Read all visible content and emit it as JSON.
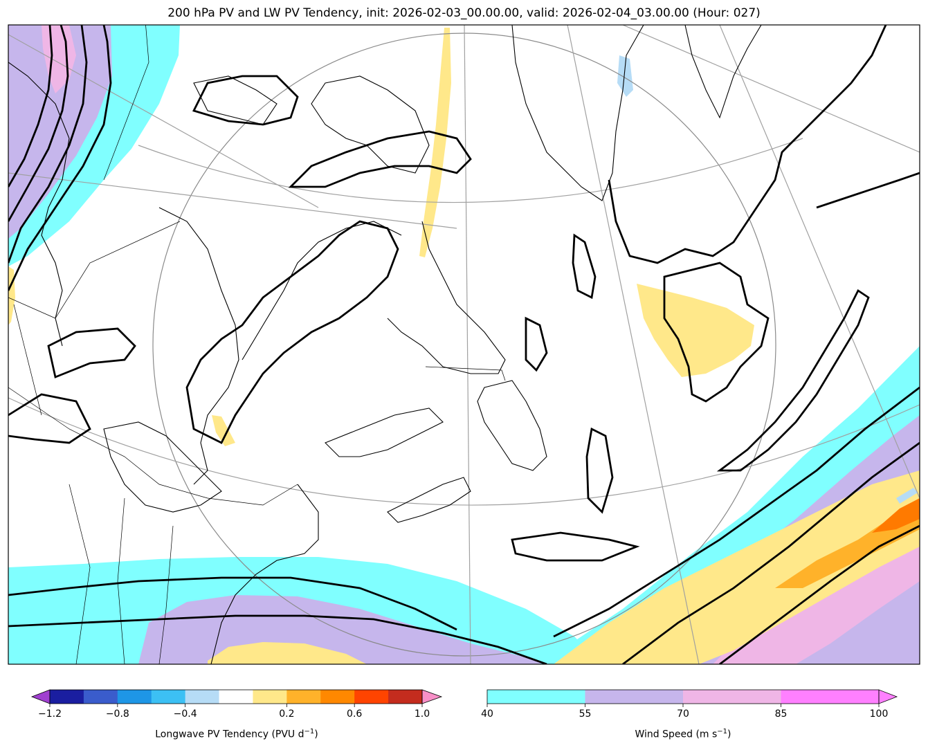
{
  "title": "200 hPa PV and LW PV Tendency, init: 2026-02-03_00.00.00, valid: 2026-02-04_03.00.00 (Hour: 027)",
  "colors": {
    "land_outline": "#000000",
    "grid": "#a0a0a0",
    "pv_contour": "#000000",
    "wind_40_55": "#80ffff",
    "wind_55_70": "#c6b6ec",
    "wind_70_85": "#efb6e6",
    "wind_85_100": "#ff80ff",
    "tend_pos_low": "#ffe88a",
    "tend_pos_mid": "#ffb22a",
    "tend_pos_high": "#ff7a00",
    "tend_neg_low": "#b6dcf6"
  },
  "colorbars": {
    "pv_tendency": {
      "label": "Longwave PV Tendency (PVU d",
      "label_sup": "−1",
      "label_end": ")",
      "ticks": [
        "−1.2",
        "−0.8",
        "−0.4",
        "0.2",
        "0.6",
        "1.0"
      ],
      "colors": [
        "#1a1ea0",
        "#3a5ccc",
        "#1e96e6",
        "#3cc0f4",
        "#b6dcf6",
        "#ffffff",
        "#ffe88a",
        "#ffb22a",
        "#ff8800",
        "#ff4400",
        "#c42c1e"
      ],
      "under_color": "#a040d0",
      "over_color": "#f890c8"
    },
    "wind_speed": {
      "label": "Wind Speed (m s",
      "label_sup": "−1",
      "label_end": ")",
      "ticks": [
        "40",
        "55",
        "70",
        "85",
        "100"
      ],
      "colors": [
        "#80ffff",
        "#c6b6ec",
        "#efb6e6",
        "#ff80ff"
      ],
      "over_color": "#ff80ff"
    }
  }
}
